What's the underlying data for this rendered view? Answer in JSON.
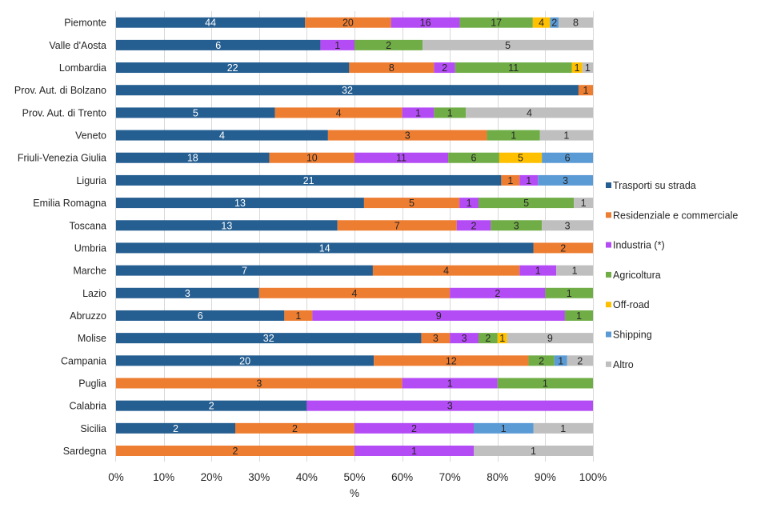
{
  "chart_data": {
    "type": "bar",
    "orientation": "horizontal",
    "stacked": "percent",
    "title": "",
    "xlabel": "%",
    "ylabel": "",
    "xlim": [
      0,
      100
    ],
    "x_ticks": [
      "0%",
      "10%",
      "20%",
      "30%",
      "40%",
      "50%",
      "60%",
      "70%",
      "80%",
      "90%",
      "100%"
    ],
    "grid": "vertical",
    "legend_position": "right",
    "categories": [
      "Piemonte",
      "Valle d'Aosta",
      "Lombardia",
      "Prov. Aut. di Bolzano",
      "Prov. Aut. di Trento",
      "Veneto",
      "Friuli-Venezia Giulia",
      "Liguria",
      "Emilia Romagna",
      "Toscana",
      "Umbria",
      "Marche",
      "Lazio",
      "Abruzzo",
      "Molise",
      "Campania",
      "Puglia",
      "Calabria",
      "Sicilia",
      "Sardegna"
    ],
    "series": [
      {
        "name": "Trasporti su strada",
        "color": "#255E91",
        "label_color": "#FFFFFF",
        "values": [
          44,
          6,
          22,
          32,
          5,
          4,
          18,
          21,
          13,
          13,
          14,
          7,
          3,
          6,
          32,
          20,
          0,
          2,
          2,
          0
        ]
      },
      {
        "name": "Residenziale e commerciale",
        "color": "#ED7D31",
        "label_color": "#262626",
        "values": [
          20,
          0,
          8,
          1,
          4,
          3,
          10,
          1,
          5,
          7,
          2,
          4,
          4,
          1,
          3,
          12,
          3,
          0,
          2,
          2
        ]
      },
      {
        "name": "Industria (*)",
        "color": "#B44CF6",
        "label_color": "#262626",
        "values": [
          16,
          1,
          2,
          0,
          1,
          0,
          11,
          1,
          1,
          2,
          0,
          1,
          2,
          9,
          3,
          0,
          1,
          3,
          2,
          1
        ]
      },
      {
        "name": "Agricoltura",
        "color": "#70AD47",
        "label_color": "#262626",
        "values": [
          17,
          2,
          11,
          0,
          1,
          1,
          6,
          0,
          5,
          3,
          0,
          0,
          1,
          1,
          2,
          2,
          1,
          0,
          0,
          0
        ]
      },
      {
        "name": "Off-road",
        "color": "#FFC000",
        "label_color": "#262626",
        "values": [
          4,
          0,
          1,
          0,
          0,
          0,
          5,
          0,
          0,
          0,
          0,
          0,
          0,
          0,
          1,
          0,
          0,
          0,
          0,
          0
        ]
      },
      {
        "name": "Shipping",
        "color": "#5B9BD5",
        "label_color": "#262626",
        "values": [
          2,
          0,
          0,
          0,
          0,
          0,
          6,
          3,
          0,
          0,
          0,
          0,
          0,
          0,
          0,
          1,
          0,
          0,
          1,
          0
        ]
      },
      {
        "name": "Altro",
        "color": "#BFBFBF",
        "label_color": "#262626",
        "values": [
          8,
          5,
          1,
          0,
          4,
          1,
          0,
          0,
          1,
          3,
          0,
          1,
          0,
          0,
          9,
          2,
          0,
          0,
          1,
          1
        ]
      }
    ]
  },
  "colors": {
    "gridline": "#D9D9D9",
    "axis_text": "#262626"
  }
}
